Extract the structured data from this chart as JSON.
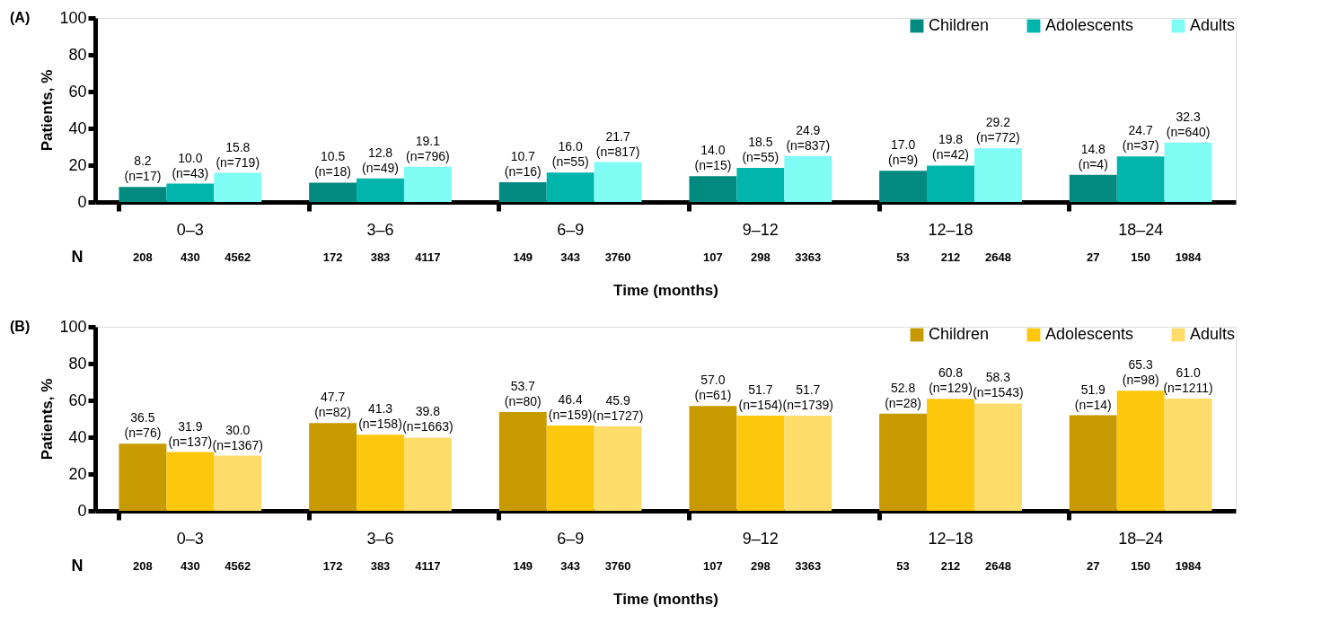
{
  "chart_data": [
    {
      "type": "bar",
      "title": "(A)",
      "xlabel": "Time (months)",
      "ylabel": "Patients, %",
      "categories": [
        "0–3",
        "3–6",
        "6–9",
        "9–12",
        "12–18",
        "18–24"
      ],
      "series": [
        {
          "name": "Children",
          "color": "#038a80",
          "values": [
            8.2,
            10.5,
            10.7,
            14.0,
            17.0,
            14.8
          ],
          "value_labels": [
            "8.2\n(n=17)",
            "10.5\n(n=18)",
            "10.7\n(n=16)",
            "14.0\n(n=15)",
            "17.0\n(n=9)",
            "14.8\n(n=4)"
          ]
        },
        {
          "name": "Adolescents",
          "color": "#00b5ab",
          "values": [
            10.0,
            12.8,
            16.0,
            18.5,
            19.8,
            24.7
          ],
          "value_labels": [
            "10.0\n(n=43)",
            "12.8\n(n=49)",
            "16.0\n(n=55)",
            "18.5\n(n=55)",
            "19.8\n(n=42)",
            "24.7\n(n=37)"
          ]
        },
        {
          "name": "Adults",
          "color": "#7ffcf4",
          "values": [
            15.8,
            19.1,
            21.7,
            24.9,
            29.2,
            32.3
          ],
          "value_labels": [
            "15.8\n(n=719)",
            "19.1\n(n=796)",
            "21.7\n(n=817)",
            "24.9\n(n=837)",
            "29.2\n(n=772)",
            "32.3\n(n=640)"
          ]
        }
      ],
      "ylim": [
        0,
        100
      ],
      "yticks": [
        0,
        20,
        40,
        60,
        80,
        100
      ],
      "legend": "top right",
      "annotations": [
        "N",
        "208",
        "430",
        "4562",
        "172",
        "383",
        "4117",
        "149",
        "343",
        "3760",
        "107",
        "298",
        "3363",
        "53",
        "212",
        "2648",
        "27",
        "150",
        "1984"
      ]
    },
    {
      "type": "bar",
      "title": "(B)",
      "xlabel": "Time (months)",
      "ylabel": "Patients, %",
      "categories": [
        "0–3",
        "3–6",
        "6–9",
        "9–12",
        "12–18",
        "18–24"
      ],
      "series": [
        {
          "name": "Children",
          "color": "#c79a00",
          "values": [
            36.5,
            47.7,
            53.7,
            57.0,
            52.8,
            51.9
          ],
          "value_labels": [
            "36.5\n(n=76)",
            "47.7\n(n=82)",
            "53.7\n(n=80)",
            "57.0\n(n=61)",
            "52.8\n(n=28)",
            "51.9\n(n=14)"
          ]
        },
        {
          "name": "Adolescents",
          "color": "#fdc70c",
          "values": [
            31.9,
            41.3,
            46.4,
            51.7,
            60.8,
            65.3
          ],
          "value_labels": [
            "31.9\n(n=137)",
            "41.3\n(n=158)",
            "46.4\n(n=159)",
            "51.7\n(n=154)",
            "60.8\n(n=129)",
            "65.3\n(n=98)"
          ]
        },
        {
          "name": "Adults",
          "color": "#fddc6a",
          "values": [
            30.0,
            39.8,
            45.9,
            51.7,
            58.3,
            61.0
          ],
          "value_labels": [
            "30.0\n(n=1367)",
            "39.8\n(n=1663)",
            "45.9\n(n=1727)",
            "51.7\n(n=1739)",
            "58.3\n(n=1543)",
            "61.0\n(n=1211)"
          ]
        }
      ],
      "ylim": [
        0,
        100
      ],
      "yticks": [
        0,
        20,
        40,
        60,
        80,
        100
      ],
      "legend": "top right",
      "annotations": [
        "N",
        "208",
        "430",
        "4562",
        "172",
        "383",
        "4117",
        "149",
        "343",
        "3760",
        "107",
        "298",
        "3363",
        "53",
        "212",
        "2648",
        "27",
        "150",
        "1984"
      ]
    }
  ]
}
